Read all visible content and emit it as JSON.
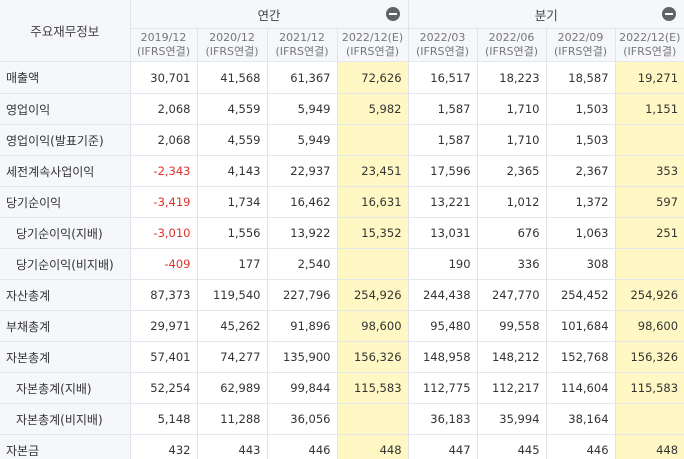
{
  "header": {
    "corner_label": "주요재무정보",
    "annual_label": "연간",
    "quarterly_label": "분기",
    "annual_periods": [
      {
        "period": "2019/12",
        "basis": "(IFRS연결)"
      },
      {
        "period": "2020/12",
        "basis": "(IFRS연결)"
      },
      {
        "period": "2021/12",
        "basis": "(IFRS연결)"
      },
      {
        "period": "2022/12(E)",
        "basis": "(IFRS연결)"
      }
    ],
    "quarterly_periods": [
      {
        "period": "2022/03",
        "basis": "(IFRS연결)"
      },
      {
        "period": "2022/06",
        "basis": "(IFRS연결)"
      },
      {
        "period": "2022/09",
        "basis": "(IFRS연결)"
      },
      {
        "period": "2022/12(E)",
        "basis": "(IFRS연결)"
      }
    ]
  },
  "rows": [
    {
      "label": "매출액",
      "sub": false,
      "values": [
        "30,701",
        "41,568",
        "61,367",
        "72,626",
        "16,517",
        "18,223",
        "18,587",
        "19,271"
      ]
    },
    {
      "label": "영업이익",
      "sub": false,
      "values": [
        "2,068",
        "4,559",
        "5,949",
        "5,982",
        "1,587",
        "1,710",
        "1,503",
        "1,151"
      ]
    },
    {
      "label": "영업이익(발표기준)",
      "sub": false,
      "values": [
        "2,068",
        "4,559",
        "5,949",
        "",
        "1,587",
        "1,710",
        "1,503",
        ""
      ]
    },
    {
      "label": "세전계속사업이익",
      "sub": false,
      "values": [
        "-2,343",
        "4,143",
        "22,937",
        "23,451",
        "17,596",
        "2,365",
        "2,367",
        "353"
      ]
    },
    {
      "label": "당기순이익",
      "sub": false,
      "values": [
        "-3,419",
        "1,734",
        "16,462",
        "16,631",
        "13,221",
        "1,012",
        "1,372",
        "597"
      ]
    },
    {
      "label": "당기순이익(지배)",
      "sub": true,
      "values": [
        "-3,010",
        "1,556",
        "13,922",
        "15,352",
        "13,031",
        "676",
        "1,063",
        "251"
      ]
    },
    {
      "label": "당기순이익(비지배)",
      "sub": true,
      "values": [
        "-409",
        "177",
        "2,540",
        "",
        "190",
        "336",
        "308",
        ""
      ]
    },
    {
      "label": "자산총계",
      "sub": false,
      "values": [
        "87,373",
        "119,540",
        "227,796",
        "254,926",
        "244,438",
        "247,770",
        "254,452",
        "254,926"
      ]
    },
    {
      "label": "부채총계",
      "sub": false,
      "values": [
        "29,971",
        "45,262",
        "91,896",
        "98,600",
        "95,480",
        "99,558",
        "101,684",
        "98,600"
      ]
    },
    {
      "label": "자본총계",
      "sub": false,
      "values": [
        "57,401",
        "74,277",
        "135,900",
        "156,326",
        "148,958",
        "148,212",
        "152,768",
        "156,326"
      ]
    },
    {
      "label": "자본총계(지배)",
      "sub": true,
      "values": [
        "52,254",
        "62,989",
        "99,844",
        "115,583",
        "112,775",
        "112,217",
        "114,604",
        "115,583"
      ]
    },
    {
      "label": "자본총계(비지배)",
      "sub": true,
      "values": [
        "5,148",
        "11,288",
        "36,056",
        "",
        "36,183",
        "35,994",
        "38,164",
        ""
      ]
    },
    {
      "label": "자본금",
      "sub": false,
      "values": [
        "432",
        "443",
        "446",
        "448",
        "447",
        "445",
        "446",
        "448"
      ]
    }
  ],
  "colors": {
    "estimate_bg": "#fff8c4",
    "negative": "#e0322b",
    "header_bg": "#f5f7fa"
  }
}
